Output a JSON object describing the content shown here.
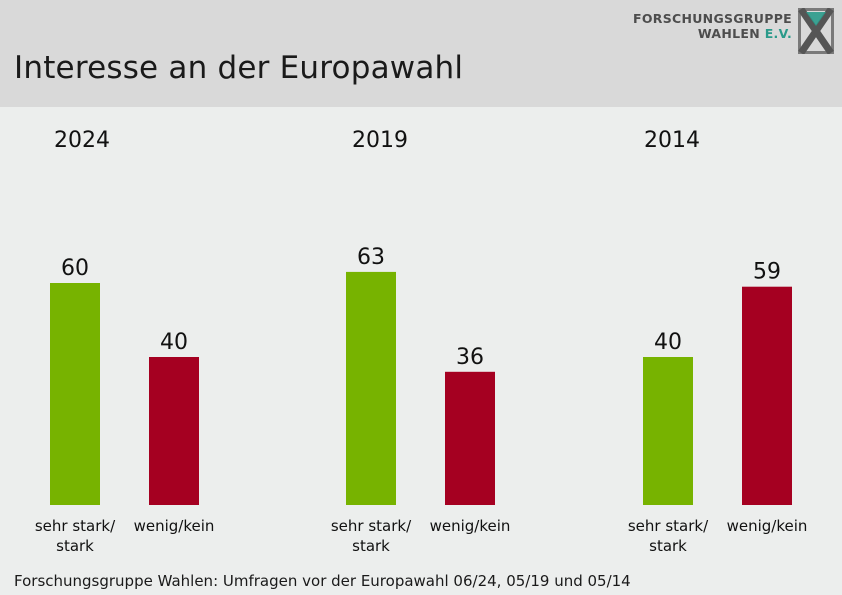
{
  "header": {
    "title": "Interesse an der Europawahl",
    "logo_line1": "FORSCHUNGSGRUPPE",
    "logo_line2_main": "WAHLEN ",
    "logo_line2_ev": "E.V."
  },
  "colors": {
    "green": "#77b300",
    "red": "#a50021"
  },
  "chart_data": [
    {
      "type": "bar",
      "title": "2024",
      "categories": [
        "sehr stark/ stark",
        "wenig/kein"
      ],
      "values": [
        60,
        40
      ],
      "ylim": [
        0,
        100
      ]
    },
    {
      "type": "bar",
      "title": "2019",
      "categories": [
        "sehr stark/ stark",
        "wenig/kein"
      ],
      "values": [
        63,
        36
      ],
      "ylim": [
        0,
        100
      ]
    },
    {
      "type": "bar",
      "title": "2014",
      "categories": [
        "sehr stark/ stark",
        "wenig/kein"
      ],
      "values": [
        40,
        59
      ],
      "ylim": [
        0,
        100
      ]
    }
  ],
  "footer": {
    "source": "Forschungsgruppe Wahlen: Umfragen vor der Europawahl 06/24, 05/19 und 05/14"
  }
}
